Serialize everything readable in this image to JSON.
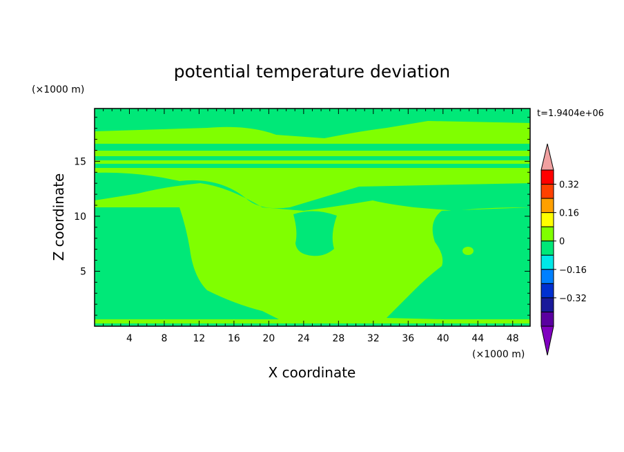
{
  "chart_data": {
    "type": "heatmap",
    "title": "potential temperature deviation",
    "xlabel": "X coordinate",
    "ylabel": "Z coordinate",
    "x_unit": "(×1000 m)",
    "y_unit": "(×1000 m)",
    "time_label": "t=1.9404e+06",
    "xlim": [
      0,
      50
    ],
    "ylim": [
      0,
      19.8
    ],
    "x_ticks": [
      4,
      8,
      12,
      16,
      20,
      24,
      28,
      32,
      36,
      40,
      44,
      48
    ],
    "y_ticks": [
      5,
      10,
      15
    ],
    "colorbar": {
      "levels": [
        -0.4,
        -0.32,
        -0.24,
        -0.16,
        -0.08,
        0,
        0.08,
        0.16,
        0.24,
        0.32,
        0.4
      ],
      "colors": [
        "#5a00a0",
        "#1a1a9a",
        "#0030d0",
        "#0080ff",
        "#00e8e8",
        "#00e878",
        "#80ff00",
        "#ffff00",
        "#ffa000",
        "#ff4000",
        "#ff0000"
      ],
      "over_color": "#f0a0a0",
      "under_color": "#8000c0",
      "tick_labels": [
        "0.32",
        "0.16",
        "0",
        "−0.16",
        "−0.32"
      ]
    },
    "field_summary": {
      "background_band": "0 to 0.08",
      "zero_to_minus_band": "-0.08 to 0",
      "regions": [
        {
          "x": [
            2.5,
            7
          ],
          "z": [
            6.5,
            10
          ],
          "band": "-0.08 to 0"
        },
        {
          "x": [
            23.5,
            28
          ],
          "z": [
            6.8,
            10.5
          ],
          "band": "-0.08 to 0"
        },
        {
          "x": [
            36,
            50
          ],
          "z": [
            0.5,
            10.5
          ],
          "band": "-0.08 to 0"
        },
        {
          "x": [
            0,
            12
          ],
          "z": [
            0.5,
            7
          ],
          "band": "-0.08 to 0"
        },
        {
          "x": [
            9,
            40
          ],
          "z": [
            0.3,
            12
          ],
          "band": "0 to 0.08"
        },
        {
          "x": [
            0,
            50
          ],
          "z": [
            15,
            16.8
          ],
          "band": "stratified layers"
        }
      ]
    }
  }
}
